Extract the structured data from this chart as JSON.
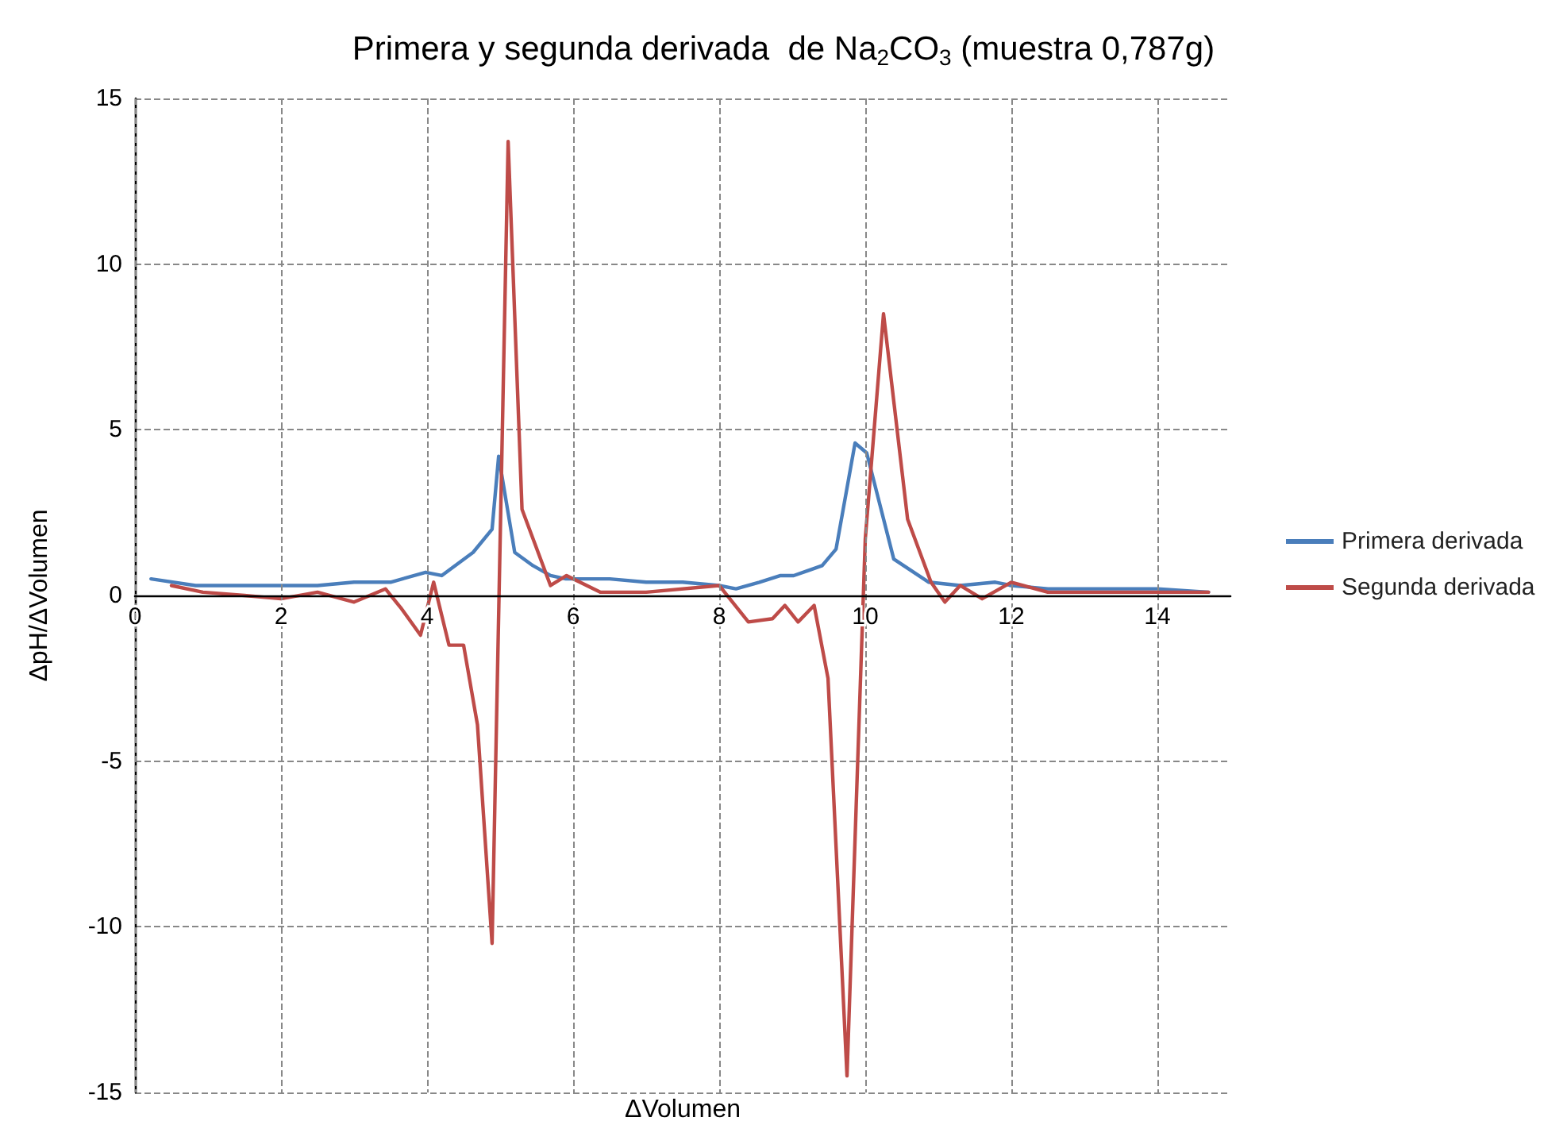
{
  "chart_data": {
    "type": "line",
    "title": "Primera y segunda derivada  de Na$_{2}$CO$_{3}$ (muestra 0,787g)",
    "xlabel": "ΔVolumen",
    "ylabel": "ΔpH/ΔVolumen",
    "xlim": [
      0,
      15
    ],
    "xticks": [
      0,
      2,
      4,
      6,
      8,
      10,
      12,
      14
    ],
    "ylim": [
      -15,
      15
    ],
    "yticks": [
      -15,
      -10,
      -5,
      0,
      5,
      10,
      15
    ],
    "grid": true,
    "legend": "right",
    "marker": "none",
    "line_style": "solid",
    "series": [
      {
        "name": "Primera derivada",
        "color": "#4a7ebb",
        "x": [
          0.22,
          0.83,
          1.5,
          2,
          2.5,
          3,
          3.5,
          3.98,
          4.2,
          4.63,
          4.89,
          4.98,
          5.2,
          5.45,
          5.69,
          5.9,
          6.5,
          7,
          7.5,
          8,
          8.23,
          8.55,
          8.84,
          9.02,
          9.41,
          9.6,
          9.86,
          10.02,
          10.39,
          10.87,
          11.3,
          11.78,
          12,
          12.5,
          13,
          14,
          14.7
        ],
        "values": [
          0.5,
          0.3,
          0.3,
          0.3,
          0.3,
          0.4,
          0.4,
          0.7,
          0.6,
          1.3,
          2.0,
          4.2,
          1.3,
          0.9,
          0.6,
          0.5,
          0.5,
          0.4,
          0.4,
          0.3,
          0.2,
          0.4,
          0.6,
          0.6,
          0.9,
          1.4,
          4.6,
          4.3,
          1.1,
          0.4,
          0.3,
          0.4,
          0.3,
          0.2,
          0.2,
          0.2,
          0.1
        ]
      },
      {
        "name": "Segunda derivada",
        "color": "#be4b48",
        "x": [
          0.5,
          0.93,
          1.5,
          2,
          2.5,
          3,
          3.43,
          3.65,
          3.91,
          4.09,
          4.3,
          4.5,
          4.69,
          4.89,
          5.11,
          5.3,
          5.69,
          5.91,
          6.37,
          7,
          8,
          8.4,
          8.73,
          8.9,
          9.08,
          9.3,
          9.49,
          9.75,
          10,
          10.25,
          10.58,
          10.9,
          11.09,
          11.3,
          11.6,
          12,
          12.5,
          13,
          14,
          14.7
        ],
        "values": [
          0.3,
          0.1,
          0,
          -0.1,
          0.1,
          -0.2,
          0.2,
          -0.4,
          -1.2,
          0.4,
          -1.5,
          -1.5,
          -3.9,
          -10.5,
          13.7,
          2.6,
          0.3,
          0.6,
          0.1,
          0.1,
          0.3,
          -0.8,
          -0.7,
          -0.3,
          -0.8,
          -0.3,
          -2.5,
          -14.5,
          1.7,
          8.5,
          2.3,
          0.4,
          -0.2,
          0.3,
          -0.1,
          0.4,
          0.1,
          0.1,
          0.1,
          0.1
        ]
      }
    ]
  }
}
